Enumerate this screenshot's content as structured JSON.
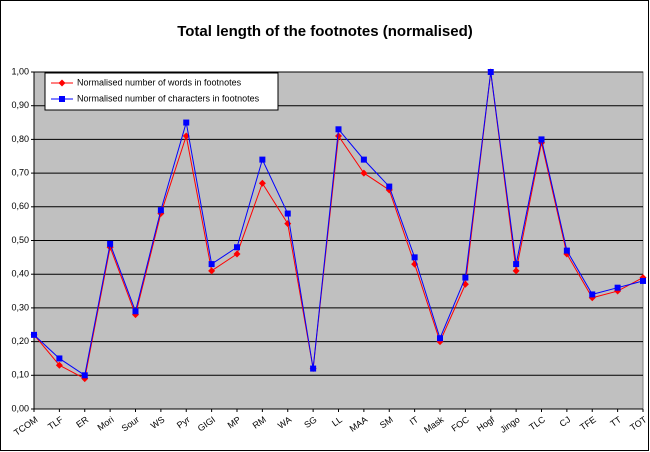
{
  "chart_data": {
    "type": "line",
    "title": "Total length of the footnotes (normalised)",
    "categories": [
      "TCOM",
      "TLF",
      "ER",
      "Mori",
      "Sour",
      "WS",
      "Pyr",
      "GIGI",
      "MP",
      "RM",
      "WA",
      "SG",
      "LL",
      "MAA",
      "SM",
      "IT",
      "Mask",
      "FOC",
      "Hogf",
      "Jingo",
      "TLC",
      "CJ",
      "TFE",
      "TT",
      "TOT"
    ],
    "series": [
      {
        "name": "Normalised number of words in footnotes",
        "color": "#ff0000",
        "marker": "diamond",
        "values": [
          0.22,
          0.13,
          0.09,
          0.48,
          0.28,
          0.58,
          0.81,
          0.41,
          0.46,
          0.67,
          0.55,
          0.12,
          0.81,
          0.7,
          0.65,
          0.43,
          0.2,
          0.37,
          1.0,
          0.41,
          0.79,
          0.46,
          0.33,
          0.35,
          0.39
        ]
      },
      {
        "name": "Normalised number of characters in footnotes",
        "color": "#0000ff",
        "marker": "square",
        "values": [
          0.22,
          0.15,
          0.1,
          0.49,
          0.29,
          0.59,
          0.85,
          0.43,
          0.48,
          0.74,
          0.58,
          0.12,
          0.83,
          0.74,
          0.66,
          0.45,
          0.21,
          0.39,
          1.0,
          0.43,
          0.8,
          0.47,
          0.34,
          0.36,
          0.38
        ]
      }
    ],
    "ylim": [
      0,
      1
    ],
    "yticks": [
      {
        "value": 0,
        "label": "0,00"
      },
      {
        "value": 0.1,
        "label": "0,10"
      },
      {
        "value": 0.2,
        "label": "0,20"
      },
      {
        "value": 0.3,
        "label": "0,30"
      },
      {
        "value": 0.4,
        "label": "0,40"
      },
      {
        "value": 0.5,
        "label": "0,50"
      },
      {
        "value": 0.6,
        "label": "0,60"
      },
      {
        "value": 0.7,
        "label": "0,70"
      },
      {
        "value": 0.8,
        "label": "0,80"
      },
      {
        "value": 0.9,
        "label": "0,90"
      },
      {
        "value": 1,
        "label": "1,00"
      }
    ],
    "grid": true,
    "legend": "top-left",
    "plot_background": "#c0c0c0"
  }
}
